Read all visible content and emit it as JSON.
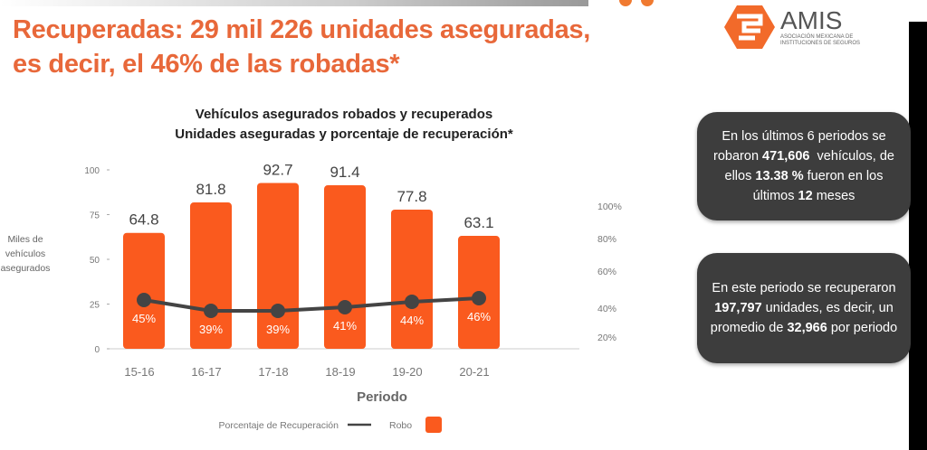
{
  "title": {
    "line1": "Recuperadas: 29 mil 226 unidades aseguradas,",
    "line2": "es decir, el 46% de las robadas*"
  },
  "logo": {
    "name": "AMIS",
    "subtitle1": "ASOCIACIÓN MEXICANA DE",
    "subtitle2": "INSTITUCIONES DE SEGUROS"
  },
  "colors": {
    "accent": "#fa5a1e",
    "title": "#e8683a",
    "card": "#3d3d3d",
    "line": "#444444"
  },
  "chart_data": {
    "type": "bar",
    "title": "Vehículos asegurados robados y recuperados",
    "subtitle": "Unidades aseguradas y porcentaje de recuperación*",
    "categories": [
      "15-16",
      "16-17",
      "17-18",
      "18-19",
      "19-20",
      "20-21"
    ],
    "series": [
      {
        "name": "Robo",
        "type": "bar",
        "values": [
          64.8,
          81.8,
          92.7,
          91.4,
          77.8,
          63.1
        ],
        "labels": [
          "64.8",
          "81.8",
          "92.7",
          "91.4",
          "77.8",
          "63.1"
        ]
      },
      {
        "name": "Porcentaje de Recuperación",
        "type": "line",
        "values": [
          45,
          39,
          39,
          41,
          44,
          46
        ],
        "labels": [
          "45%",
          "39%",
          "39%",
          "41%",
          "44%",
          "46%"
        ]
      }
    ],
    "ylabel": "Miles de vehículos asegurados",
    "ylabel_lines": [
      "Miles de",
      "vehículos",
      "asegurados"
    ],
    "xlabel": "Periodo",
    "ylim": [
      0,
      100
    ],
    "yticks": [
      "0",
      "25",
      "50",
      "75",
      "100"
    ],
    "y2ticks": [
      "20%",
      "40%",
      "60%",
      "80%",
      "100%"
    ],
    "legend": {
      "line_label": "Porcentaje de Recuperación",
      "bar_label": "Robo",
      "position": "bottom"
    }
  },
  "cards": [
    {
      "segments": [
        {
          "t": "En los últimos 6 periodos se robaron "
        },
        {
          "t": "471,606",
          "b": true
        },
        {
          "t": "  vehículos, de ellos "
        },
        {
          "t": "13.38 %",
          "b": true
        },
        {
          "t": " fueron en los últimos "
        },
        {
          "t": "12",
          "b": true
        },
        {
          "t": " meses"
        }
      ]
    },
    {
      "segments": [
        {
          "t": "En este periodo se recuperaron "
        },
        {
          "t": "197,797",
          "b": true
        },
        {
          "t": " unidades, es decir, un promedio de "
        },
        {
          "t": "32,966",
          "b": true
        },
        {
          "t": " por periodo"
        }
      ]
    }
  ]
}
